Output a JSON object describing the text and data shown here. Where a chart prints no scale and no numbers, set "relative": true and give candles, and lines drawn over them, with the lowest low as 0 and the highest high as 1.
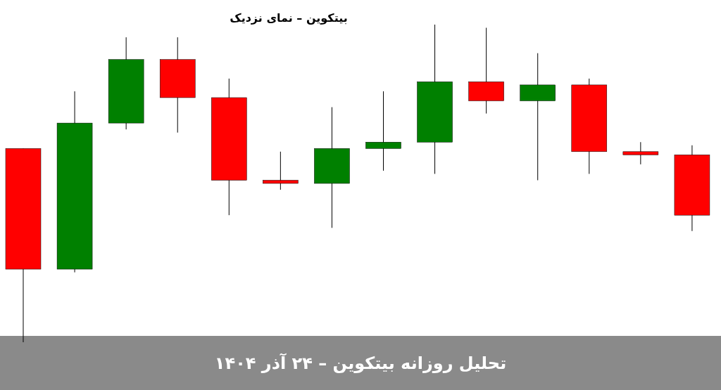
{
  "chart_data": {
    "type": "candlestick",
    "title": "بیتکوین – نمای نزدیک",
    "relative": true,
    "categories": [
      null,
      null,
      null,
      null,
      null,
      null,
      null,
      null,
      null,
      null,
      null,
      null,
      null,
      null
    ],
    "ohlc": [
      [
        0.61,
        0.61,
        0,
        0.23
      ],
      [
        0.23,
        0.79,
        0.22,
        0.69
      ],
      [
        0.69,
        0.96,
        0.67,
        0.89
      ],
      [
        0.89,
        0.96,
        0.66,
        0.77
      ],
      [
        0.77,
        0.83,
        0.4,
        0.51
      ],
      [
        0.51,
        0.6,
        0.48,
        0.5
      ],
      [
        0.5,
        0.74,
        0.36,
        0.61
      ],
      [
        0.61,
        0.79,
        0.54,
        0.63
      ],
      [
        0.63,
        1,
        0.53,
        0.82
      ],
      [
        0.82,
        0.99,
        0.72,
        0.76
      ],
      [
        0.76,
        0.91,
        0.51,
        0.81
      ],
      [
        0.81,
        0.83,
        0.53,
        0.6
      ],
      [
        0.6,
        0.63,
        0.56,
        0.59
      ],
      [
        0.59,
        0.62,
        0.35,
        0.4
      ]
    ],
    "colors": [
      "#ff0000",
      "#008000",
      "#008000",
      "#ff0000",
      "#ff0000",
      "#ff0000",
      "#008000",
      "#008000",
      "#008000",
      "#ff0000",
      "#008000",
      "#ff0000",
      "#ff0000",
      "#ff0000"
    ],
    "annotations": [
      "تحلیل روزانه بیتکوین – ۲۴ آذر ۱۴۰۴"
    ]
  }
}
